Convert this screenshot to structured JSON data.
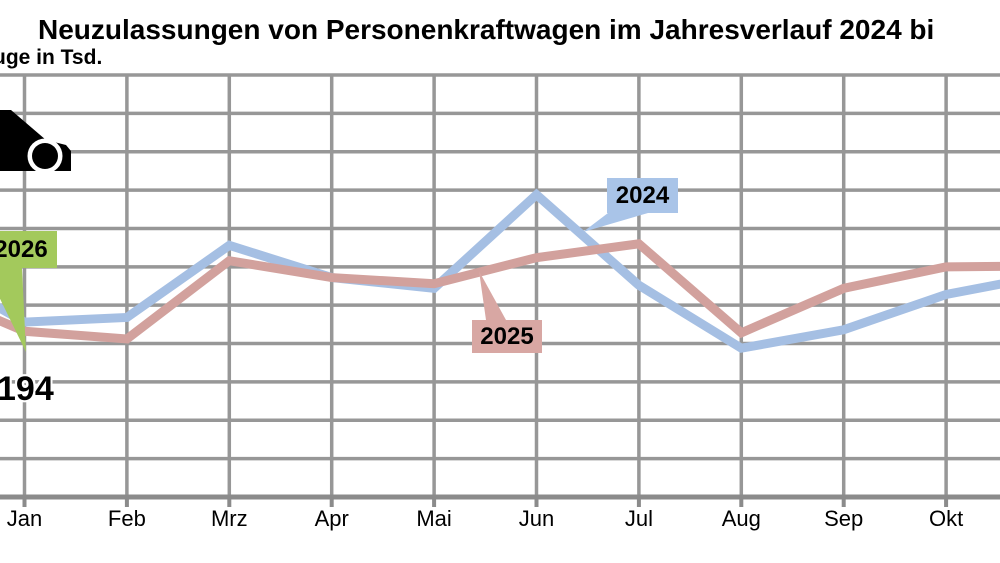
{
  "title": "Neuzulassungen von Personenkraftwagen im Jahresverlauf 2024 bi",
  "subtitle": "uge in Tsd.",
  "annotations": {
    "jan_2026_value": "194"
  },
  "labels": {
    "y2024": "2024",
    "y2025": "2025",
    "y2026": "2026"
  },
  "colors": {
    "accent2024": "#a9c4e8",
    "accent2025": "#d8a7a3",
    "accent2026": "#a3c95c",
    "line2024": "#a5bfe3",
    "line2025": "#d2a19d",
    "grid": "#979797",
    "axis": "#8b8b8b",
    "text": "#000000"
  },
  "chart_data": {
    "type": "line",
    "title": "Neuzulassungen von Personenkraftwagen im Jahresverlauf 2024 bi",
    "ylabel": "uge in Tsd.",
    "categories": [
      "Jan",
      "Feb",
      "Mrz",
      "Apr",
      "Mai",
      "Jun",
      "Jul",
      "Aug",
      "Sep",
      "Okt"
    ],
    "series": [
      {
        "name": "2024",
        "color": "#a5bfe3",
        "values": [
          214,
          217,
          264,
          243,
          236,
          297,
          238,
          197,
          209,
          232
        ]
      },
      {
        "name": "2025",
        "color": "#d2a19d",
        "values": [
          208,
          203,
          254,
          243,
          239,
          256,
          265,
          207,
          236,
          250
        ]
      },
      {
        "name": "2026",
        "color": "#a3c95c",
        "values": [
          194
        ]
      }
    ],
    "unit": "Tsd.",
    "ylim": [
      100,
      375
    ],
    "grid_step": 25,
    "grid": "on",
    "legend_position": "inline-callout-boxes",
    "annotation": {
      "series": "2026",
      "category": "Jan",
      "text": "194"
    }
  }
}
